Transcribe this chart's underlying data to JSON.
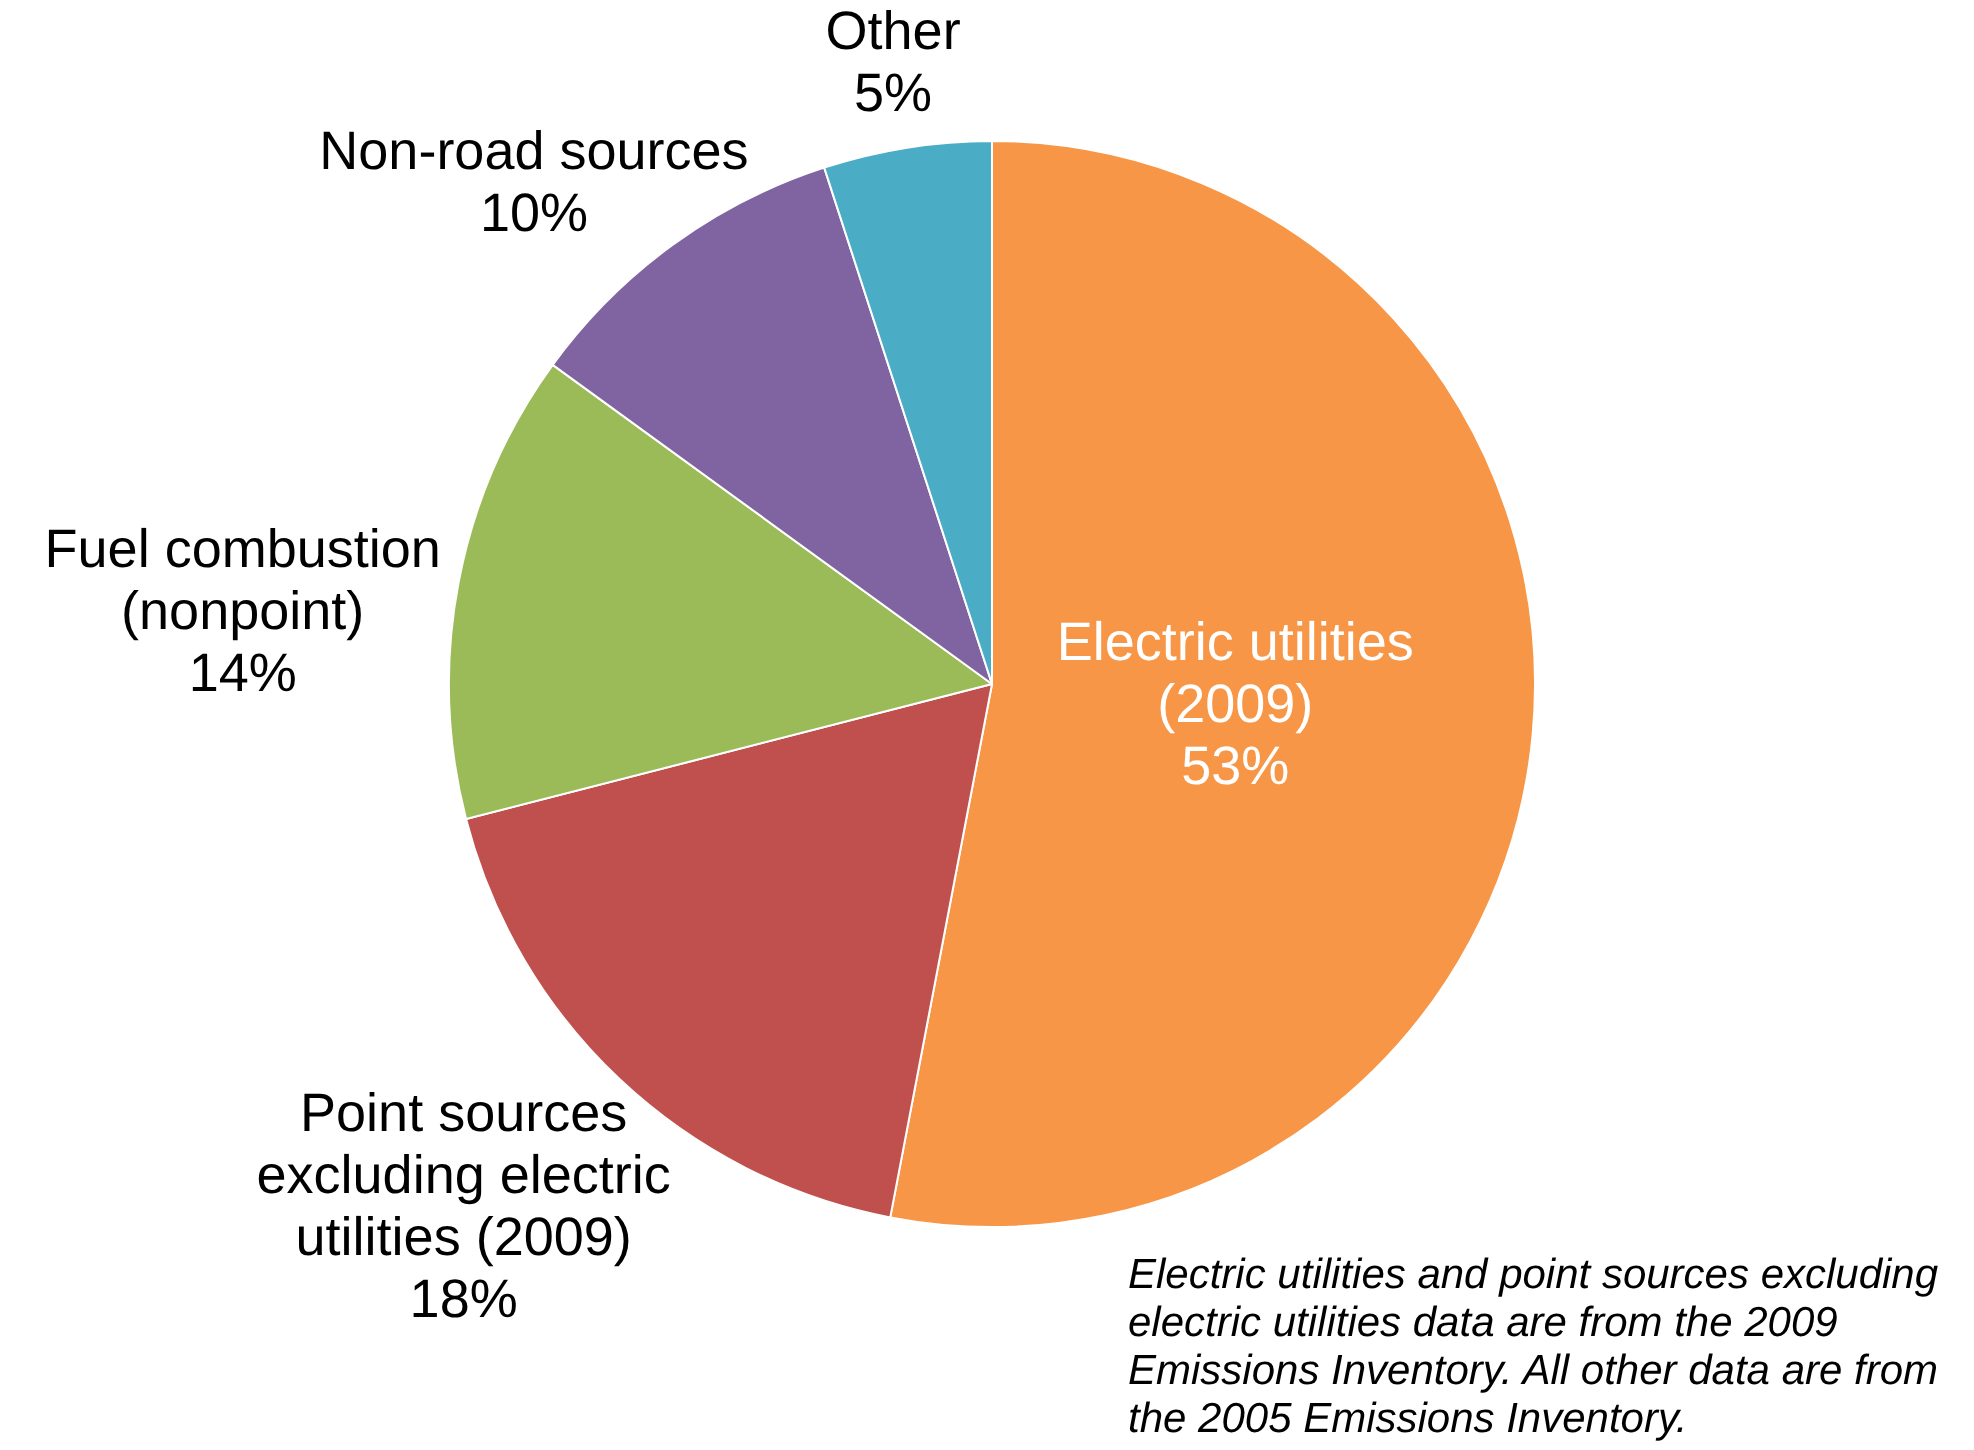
{
  "chart_data": {
    "type": "pie",
    "categories": [
      "Electric utilities (2009)",
      "Point sources excluding electric utilities (2009)",
      "Fuel combustion (nonpoint)",
      "Non-road sources",
      "Other"
    ],
    "values": [
      53,
      18,
      14,
      10,
      5
    ],
    "value_labels": [
      "53%",
      "18%",
      "14%",
      "10%",
      "5%"
    ],
    "colors": [
      "#f79646",
      "#c0504d",
      "#9bbb59",
      "#8064a2",
      "#4bacc6"
    ],
    "annotations": [
      "Electric utilities and point sources excluding electric utilities data are from the 2009 Emissions Inventory. All other data are from the 2005 Emissions Inventory."
    ]
  }
}
